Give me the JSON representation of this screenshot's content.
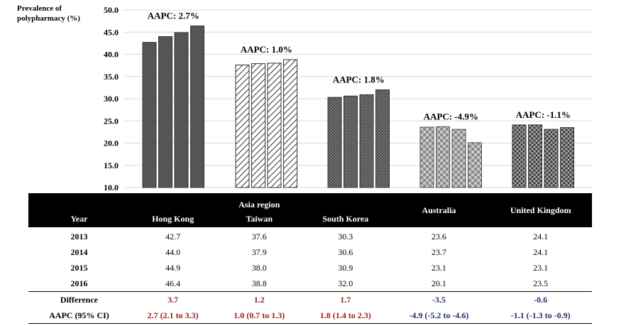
{
  "chart_data": {
    "type": "bar",
    "ylabel": "Prevalence of\npolypharmacy (%)",
    "ylim": [
      10,
      50
    ],
    "yticks": [
      "10.0",
      "15.0",
      "20.0",
      "25.0",
      "30.0",
      "35.0",
      "40.0",
      "45.0",
      "50.0"
    ],
    "grid": true,
    "categories": [
      "Hong Kong",
      "Taiwan",
      "South Korea",
      "Australia",
      "United Kingdom"
    ],
    "years": [
      "2013",
      "2014",
      "2015",
      "2016"
    ],
    "values": [
      [
        42.7,
        44.0,
        44.9,
        46.4
      ],
      [
        37.6,
        37.9,
        38.0,
        38.8
      ],
      [
        30.3,
        30.6,
        30.9,
        32.0
      ],
      [
        23.6,
        23.7,
        23.1,
        20.1
      ],
      [
        24.1,
        24.1,
        23.1,
        23.5
      ]
    ],
    "annotations": [
      "AAPC: 2.7%",
      "AAPC: 1.0%",
      "AAPC: 1.8%",
      "AAPC: -4.9%",
      "AAPC: -1.1%"
    ]
  },
  "table": {
    "group_header": "Asia region",
    "year_header": "Year",
    "countries": [
      "Hong Kong",
      "Taiwan",
      "South Korea",
      "Australia",
      "United Kingdom"
    ],
    "rows": [
      {
        "year": "2013",
        "cells": [
          "42.7",
          "37.6",
          "30.3",
          "23.6",
          "24.1"
        ]
      },
      {
        "year": "2014",
        "cells": [
          "44.0",
          "37.9",
          "30.6",
          "23.7",
          "24.1"
        ]
      },
      {
        "year": "2015",
        "cells": [
          "44.9",
          "38.0",
          "30.9",
          "23.1",
          "23.1"
        ]
      },
      {
        "year": "2016",
        "cells": [
          "46.4",
          "38.8",
          "32.0",
          "20.1",
          "23.5"
        ]
      }
    ],
    "difference_label": "Difference",
    "difference": [
      "3.7",
      "1.2",
      "1.7",
      "-3.5",
      "-0.6"
    ],
    "aapc_label": "AAPC (95% CI)",
    "aapc": [
      "2.7 (2.1 to 3.3)",
      "1.0 (0.7 to 1.3)",
      "1.8 (1.4 to 2.3)",
      "-4.9 (-5.2 to -4.6)",
      "-1.1 (-1.3 to -0.9)"
    ]
  },
  "colors": {
    "hong_kong": "#555555",
    "pattern_dark": "#333333",
    "positive_text": "#9b1b1b",
    "negative_text": "#1f2f6b",
    "grid": "#d9d9d9"
  }
}
